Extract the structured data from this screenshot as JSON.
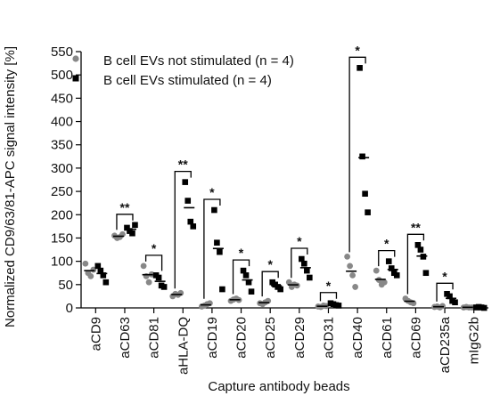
{
  "chart_data": {
    "type": "scatter",
    "ylabel": "Normalized CD9/63/81-APC signal intensity [%]",
    "xlabel": "Capture antibody beads",
    "ylim": [
      0,
      550
    ],
    "yticks": [
      0,
      50,
      100,
      150,
      200,
      250,
      300,
      350,
      400,
      450,
      500,
      550
    ],
    "legend_position": "top-left",
    "colors": {
      "not_stimulated": "#888888",
      "stimulated": "#000000"
    },
    "series": [
      {
        "name": "B cell EVs not stimulated (n = 4)",
        "marker": "circle"
      },
      {
        "name": "B cell EVs stimulated (n = 4)",
        "marker": "square"
      }
    ],
    "categories": [
      "aCD9",
      "aCD63",
      "aCD81",
      "aHLA-DQ",
      "aCD19",
      "aCD20",
      "aCD25",
      "aCD29",
      "aCD31",
      "aCD40",
      "aCD61",
      "aCD69",
      "aCD235a",
      "mIgG2b"
    ],
    "groups": [
      {
        "category": "aCD9",
        "not_stimulated": [
          95,
          75,
          68,
          82
        ],
        "stimulated": [
          90,
          80,
          70,
          55
        ],
        "significance": ""
      },
      {
        "category": "aCD63",
        "not_stimulated": [
          155,
          150,
          152,
          158
        ],
        "stimulated": [
          172,
          165,
          160,
          178
        ],
        "significance": "**"
      },
      {
        "category": "aCD81",
        "not_stimulated": [
          90,
          68,
          55,
          72
        ],
        "stimulated": [
          70,
          65,
          48,
          45
        ],
        "significance": "*"
      },
      {
        "category": "aHLA-DQ",
        "not_stimulated": [
          25,
          30,
          28,
          32
        ],
        "stimulated": [
          270,
          230,
          185,
          175
        ],
        "significance": "**"
      },
      {
        "category": "aCD19",
        "not_stimulated": [
          3,
          5,
          8,
          10
        ],
        "stimulated": [
          210,
          140,
          120,
          40
        ],
        "significance": "*"
      },
      {
        "category": "aCD20",
        "not_stimulated": [
          15,
          18,
          20,
          17
        ],
        "stimulated": [
          80,
          70,
          55,
          35
        ],
        "significance": "*"
      },
      {
        "category": "aCD25",
        "not_stimulated": [
          10,
          8,
          12,
          15
        ],
        "stimulated": [
          55,
          50,
          45,
          40
        ],
        "significance": "*"
      },
      {
        "category": "aCD29",
        "not_stimulated": [
          55,
          45,
          50,
          48
        ],
        "stimulated": [
          105,
          95,
          80,
          65
        ],
        "significance": "*"
      },
      {
        "category": "aCD31",
        "not_stimulated": [
          3,
          2,
          5,
          4
        ],
        "stimulated": [
          10,
          8,
          6,
          5
        ],
        "significance": "*"
      },
      {
        "category": "aCD40",
        "not_stimulated": [
          110,
          90,
          70,
          45
        ],
        "stimulated": [
          515,
          325,
          245,
          205
        ],
        "significance": "*"
      },
      {
        "category": "aCD61",
        "not_stimulated": [
          80,
          60,
          50,
          55
        ],
        "stimulated": [
          100,
          85,
          75,
          70
        ],
        "significance": "*"
      },
      {
        "category": "aCD69",
        "not_stimulated": [
          20,
          15,
          12,
          10
        ],
        "stimulated": [
          135,
          125,
          110,
          75
        ],
        "significance": "**"
      },
      {
        "category": "aCD235a",
        "not_stimulated": [
          2,
          3,
          1,
          4
        ],
        "stimulated": [
          30,
          25,
          15,
          12
        ],
        "significance": "*"
      },
      {
        "category": "mIgG2b",
        "not_stimulated": [
          1,
          2,
          1,
          1
        ],
        "stimulated": [
          1,
          2,
          1,
          0
        ],
        "significance": ""
      }
    ]
  }
}
